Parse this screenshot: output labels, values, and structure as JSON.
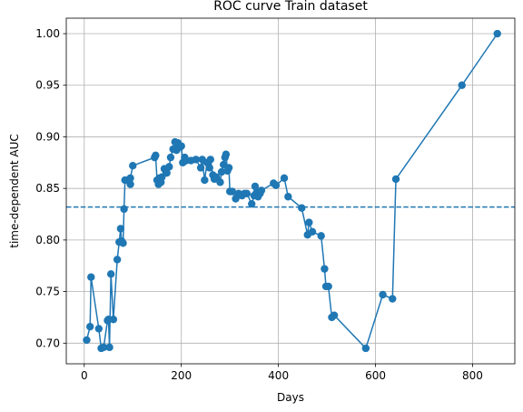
{
  "chart_data": {
    "type": "line",
    "title": "ROC curve Train dataset",
    "xlabel": "Days",
    "ylabel": "time-dependent AUC",
    "xlim": [
      -37,
      887
    ],
    "ylim": [
      0.68,
      1.015
    ],
    "xticks": [
      0,
      200,
      400,
      600,
      800
    ],
    "yticks": [
      0.7,
      0.75,
      0.8,
      0.85,
      0.9,
      0.95,
      1.0
    ],
    "xtick_labels": [
      "0",
      "200",
      "400",
      "600",
      "800"
    ],
    "ytick_labels": [
      "0.70",
      "0.75",
      "0.80",
      "0.85",
      "0.90",
      "0.95",
      "1.00"
    ],
    "grid": true,
    "colors": {
      "series": "#1f77b4"
    },
    "reference_line": {
      "y": 0.832,
      "style": "dashed"
    },
    "series": [
      {
        "marker": "circle",
        "x": [
          5,
          12,
          14,
          30,
          35,
          40,
          48,
          50,
          52,
          55,
          60,
          68,
          72,
          75,
          77,
          80,
          82,
          84,
          90,
          95,
          95,
          100,
          145,
          147,
          150,
          153,
          155,
          158,
          160,
          165,
          170,
          175,
          178,
          183,
          187,
          190,
          193,
          197,
          200,
          203,
          207,
          210,
          220,
          230,
          240,
          243,
          248,
          253,
          258,
          260,
          265,
          268,
          272,
          280,
          283,
          287,
          290,
          292,
          295,
          298,
          300,
          305,
          312,
          318,
          322,
          325,
          330,
          335,
          345,
          350,
          352,
          355,
          358,
          362,
          365,
          390,
          395,
          412,
          420,
          448,
          460,
          463,
          470,
          488,
          495,
          498,
          503,
          510,
          515,
          580,
          615,
          635,
          642,
          778,
          851
        ],
        "y": [
          0.703,
          0.716,
          0.764,
          0.714,
          0.695,
          0.696,
          0.722,
          0.723,
          0.696,
          0.767,
          0.723,
          0.781,
          0.798,
          0.811,
          0.799,
          0.797,
          0.83,
          0.858,
          0.858,
          0.854,
          0.86,
          0.872,
          0.88,
          0.882,
          0.858,
          0.854,
          0.86,
          0.856,
          0.861,
          0.869,
          0.865,
          0.871,
          0.88,
          0.888,
          0.895,
          0.887,
          0.894,
          0.89,
          0.891,
          0.875,
          0.88,
          0.877,
          0.877,
          0.878,
          0.87,
          0.878,
          0.858,
          0.875,
          0.87,
          0.878,
          0.863,
          0.859,
          0.861,
          0.856,
          0.866,
          0.873,
          0.88,
          0.883,
          0.867,
          0.87,
          0.847,
          0.847,
          0.84,
          0.845,
          0.844,
          0.843,
          0.845,
          0.845,
          0.835,
          0.843,
          0.852,
          0.846,
          0.842,
          0.845,
          0.848,
          0.855,
          0.853,
          0.86,
          0.842,
          0.831,
          0.805,
          0.817,
          0.808,
          0.804,
          0.772,
          0.755,
          0.755,
          0.725,
          0.727,
          0.695,
          0.747,
          0.743,
          0.859,
          0.95,
          1.0
        ]
      }
    ]
  }
}
